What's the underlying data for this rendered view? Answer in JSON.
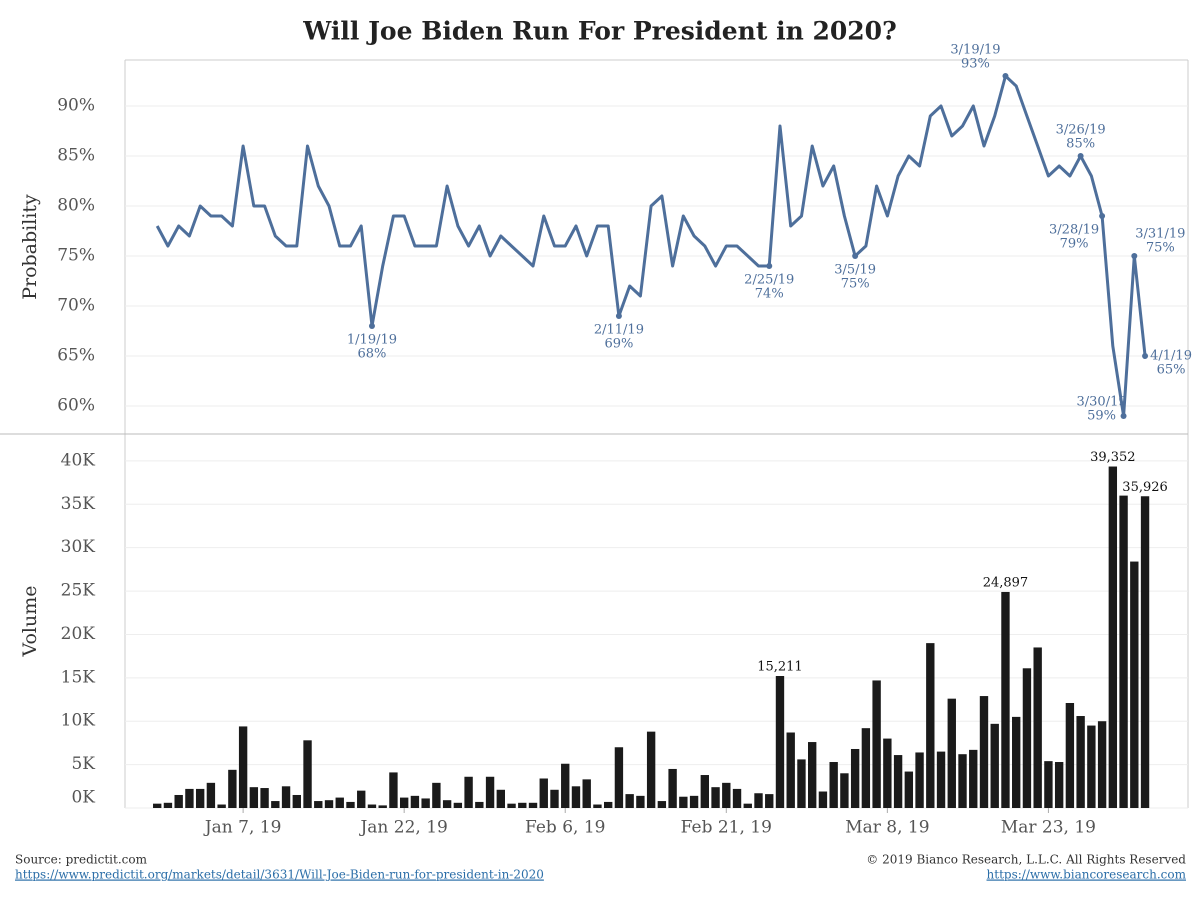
{
  "title": "Will Joe Biden Run For President in 2020?",
  "footer": {
    "source": "Source: predictit.com",
    "source_url": "https://www.predictit.org/markets/detail/3631/Will-Joe-Biden-run-for-president-in-2020",
    "copyright": "© 2019 Bianco Research, L.L.C. All Rights Reserved",
    "site_url": "https://www.biancoresearch.com"
  },
  "chart_data": [
    {
      "type": "line",
      "y_label": "Probability",
      "x": [
        "2018-12-30",
        "2018-12-31",
        "2019-01-01",
        "2019-01-02",
        "2019-01-03",
        "2019-01-04",
        "2019-01-05",
        "2019-01-06",
        "2019-01-07",
        "2019-01-08",
        "2019-01-09",
        "2019-01-10",
        "2019-01-11",
        "2019-01-12",
        "2019-01-13",
        "2019-01-14",
        "2019-01-15",
        "2019-01-16",
        "2019-01-17",
        "2019-01-18",
        "2019-01-19",
        "2019-01-20",
        "2019-01-21",
        "2019-01-22",
        "2019-01-23",
        "2019-01-24",
        "2019-01-25",
        "2019-01-26",
        "2019-01-27",
        "2019-01-28",
        "2019-01-29",
        "2019-01-30",
        "2019-01-31",
        "2019-02-01",
        "2019-02-02",
        "2019-02-03",
        "2019-02-04",
        "2019-02-05",
        "2019-02-06",
        "2019-02-07",
        "2019-02-08",
        "2019-02-09",
        "2019-02-10",
        "2019-02-11",
        "2019-02-12",
        "2019-02-13",
        "2019-02-14",
        "2019-02-15",
        "2019-02-16",
        "2019-02-17",
        "2019-02-18",
        "2019-02-19",
        "2019-02-20",
        "2019-02-21",
        "2019-02-22",
        "2019-02-23",
        "2019-02-24",
        "2019-02-25",
        "2019-02-26",
        "2019-02-27",
        "2019-02-28",
        "2019-03-01",
        "2019-03-02",
        "2019-03-03",
        "2019-03-04",
        "2019-03-05",
        "2019-03-06",
        "2019-03-07",
        "2019-03-08",
        "2019-03-09",
        "2019-03-10",
        "2019-03-11",
        "2019-03-12",
        "2019-03-13",
        "2019-03-14",
        "2019-03-15",
        "2019-03-16",
        "2019-03-17",
        "2019-03-18",
        "2019-03-19",
        "2019-03-20",
        "2019-03-21",
        "2019-03-22",
        "2019-03-23",
        "2019-03-24",
        "2019-03-25",
        "2019-03-26",
        "2019-03-27",
        "2019-03-28",
        "2019-03-29",
        "2019-03-30",
        "2019-03-31",
        "2019-04-01"
      ],
      "series": [
        {
          "color": "#4e6f9b",
          "values": [
            78,
            76,
            78,
            77,
            80,
            79,
            79,
            78,
            86,
            80,
            80,
            77,
            76,
            76,
            86,
            82,
            80,
            76,
            76,
            78,
            68,
            74,
            79,
            79,
            76,
            76,
            76,
            82,
            78,
            76,
            78,
            75,
            77,
            76,
            75,
            74,
            79,
            76,
            76,
            78,
            75,
            78,
            78,
            69,
            72,
            71,
            80,
            81,
            74,
            79,
            77,
            76,
            74,
            76,
            76,
            75,
            74,
            74,
            88,
            78,
            79,
            86,
            82,
            84,
            79,
            75,
            76,
            82,
            79,
            83,
            85,
            84,
            89,
            90,
            87,
            88,
            90,
            86,
            89,
            93,
            92,
            89,
            86,
            83,
            84,
            83,
            85,
            83,
            79,
            66,
            59,
            75,
            65
          ]
        }
      ],
      "xlim": [
        "2018-12-27",
        "2019-04-05"
      ],
      "ylim": [
        57.2,
        94.6
      ],
      "yticks": [
        {
          "value": 60,
          "label": "60%"
        },
        {
          "value": 65,
          "label": "65%"
        },
        {
          "value": 70,
          "label": "70%"
        },
        {
          "value": 75,
          "label": "75%"
        },
        {
          "value": 80,
          "label": "80%"
        },
        {
          "value": 85,
          "label": "85%"
        },
        {
          "value": 90,
          "label": "90%"
        }
      ],
      "grid": true,
      "annotations": [
        {
          "x": "2019-01-19",
          "text": "1/19/19",
          "value_label": "68%"
        },
        {
          "x": "2019-02-11",
          "text": "2/11/19",
          "value_label": "69%"
        },
        {
          "x": "2019-02-25",
          "text": "2/25/19",
          "value_label": "74%"
        },
        {
          "x": "2019-03-05",
          "text": "3/5/19",
          "value_label": "75%"
        },
        {
          "x": "2019-03-19",
          "text": "3/19/19",
          "value_label": "93%"
        },
        {
          "x": "2019-03-26",
          "text": "3/26/19",
          "value_label": "85%"
        },
        {
          "x": "2019-03-28",
          "text": "3/28/19",
          "value_label": "79%"
        },
        {
          "x": "2019-03-30",
          "text": "3/30/19",
          "value_label": "59%"
        },
        {
          "x": "2019-03-31",
          "text": "3/31/19",
          "value_label": "75%"
        },
        {
          "x": "2019-04-01",
          "text": "4/1/19",
          "value_label": "65%"
        }
      ]
    },
    {
      "type": "bar",
      "y_label": "Volume",
      "x": [
        "2018-12-30",
        "2018-12-31",
        "2019-01-01",
        "2019-01-02",
        "2019-01-03",
        "2019-01-04",
        "2019-01-05",
        "2019-01-06",
        "2019-01-07",
        "2019-01-08",
        "2019-01-09",
        "2019-01-10",
        "2019-01-11",
        "2019-01-12",
        "2019-01-13",
        "2019-01-14",
        "2019-01-15",
        "2019-01-16",
        "2019-01-17",
        "2019-01-18",
        "2019-01-19",
        "2019-01-20",
        "2019-01-21",
        "2019-01-22",
        "2019-01-23",
        "2019-01-24",
        "2019-01-25",
        "2019-01-26",
        "2019-01-27",
        "2019-01-28",
        "2019-01-29",
        "2019-01-30",
        "2019-01-31",
        "2019-02-01",
        "2019-02-02",
        "2019-02-03",
        "2019-02-04",
        "2019-02-05",
        "2019-02-06",
        "2019-02-07",
        "2019-02-08",
        "2019-02-09",
        "2019-02-10",
        "2019-02-11",
        "2019-02-12",
        "2019-02-13",
        "2019-02-14",
        "2019-02-15",
        "2019-02-16",
        "2019-02-17",
        "2019-02-18",
        "2019-02-19",
        "2019-02-20",
        "2019-02-21",
        "2019-02-22",
        "2019-02-23",
        "2019-02-24",
        "2019-02-25",
        "2019-02-26",
        "2019-02-27",
        "2019-02-28",
        "2019-03-01",
        "2019-03-02",
        "2019-03-03",
        "2019-03-04",
        "2019-03-05",
        "2019-03-06",
        "2019-03-07",
        "2019-03-08",
        "2019-03-09",
        "2019-03-10",
        "2019-03-11",
        "2019-03-12",
        "2019-03-13",
        "2019-03-14",
        "2019-03-15",
        "2019-03-16",
        "2019-03-17",
        "2019-03-18",
        "2019-03-19",
        "2019-03-20",
        "2019-03-21",
        "2019-03-22",
        "2019-03-23",
        "2019-03-24",
        "2019-03-25",
        "2019-03-26",
        "2019-03-27",
        "2019-03-28",
        "2019-03-29",
        "2019-03-30",
        "2019-03-31",
        "2019-04-01"
      ],
      "color": "#1a1a1a",
      "values": [
        500,
        600,
        1500,
        2200,
        2200,
        2900,
        400,
        4400,
        9400,
        2400,
        2300,
        800,
        2500,
        1500,
        7800,
        800,
        900,
        1200,
        700,
        2000,
        400,
        300,
        4100,
        1200,
        1400,
        1100,
        2900,
        900,
        600,
        3600,
        700,
        3600,
        2100,
        500,
        600,
        600,
        3400,
        2100,
        5100,
        2500,
        3300,
        400,
        700,
        7000,
        1600,
        1400,
        8800,
        800,
        4500,
        1300,
        1400,
        3800,
        2400,
        2900,
        2200,
        500,
        1700,
        1600,
        15211,
        8700,
        5600,
        7600,
        1900,
        5300,
        4000,
        6800,
        9200,
        14700,
        8000,
        6100,
        4200,
        6400,
        19000,
        6500,
        12600,
        6200,
        6700,
        12900,
        9700,
        24897,
        10500,
        16100,
        18500,
        5400,
        5300,
        12100,
        10600,
        9500,
        10000,
        39352,
        36000,
        28400,
        35926
      ],
      "value_labels": [
        null,
        null,
        null,
        null,
        null,
        null,
        null,
        null,
        null,
        null,
        null,
        null,
        null,
        null,
        null,
        null,
        null,
        null,
        null,
        null,
        null,
        null,
        null,
        null,
        null,
        null,
        null,
        null,
        null,
        null,
        null,
        null,
        null,
        null,
        null,
        null,
        null,
        null,
        null,
        null,
        null,
        null,
        null,
        null,
        null,
        null,
        null,
        null,
        null,
        null,
        null,
        null,
        null,
        null,
        null,
        null,
        null,
        null,
        "15,211",
        null,
        null,
        null,
        null,
        null,
        null,
        null,
        null,
        null,
        null,
        null,
        null,
        null,
        null,
        null,
        null,
        null,
        null,
        null,
        null,
        "24,897",
        null,
        null,
        null,
        null,
        null,
        null,
        null,
        null,
        null,
        "39,352",
        null,
        null,
        "35,926"
      ],
      "xlim": [
        "2018-12-27",
        "2019-04-05"
      ],
      "ylim": [
        0,
        43100
      ],
      "yticks": [
        {
          "value": 0,
          "label": "0K"
        },
        {
          "value": 5000,
          "label": "5K"
        },
        {
          "value": 10000,
          "label": "10K"
        },
        {
          "value": 15000,
          "label": "15K"
        },
        {
          "value": 20000,
          "label": "20K"
        },
        {
          "value": 25000,
          "label": "25K"
        },
        {
          "value": 30000,
          "label": "30K"
        },
        {
          "value": 35000,
          "label": "35K"
        },
        {
          "value": 40000,
          "label": "40K"
        }
      ],
      "xticks": [
        {
          "value": "2019-01-07",
          "label": "Jan 7, 19"
        },
        {
          "value": "2019-01-22",
          "label": "Jan 22, 19"
        },
        {
          "value": "2019-02-06",
          "label": "Feb 6, 19"
        },
        {
          "value": "2019-02-21",
          "label": "Feb 21, 19"
        },
        {
          "value": "2019-03-08",
          "label": "Mar 8, 19"
        },
        {
          "value": "2019-03-23",
          "label": "Mar 23, 19"
        }
      ],
      "grid": true
    }
  ]
}
